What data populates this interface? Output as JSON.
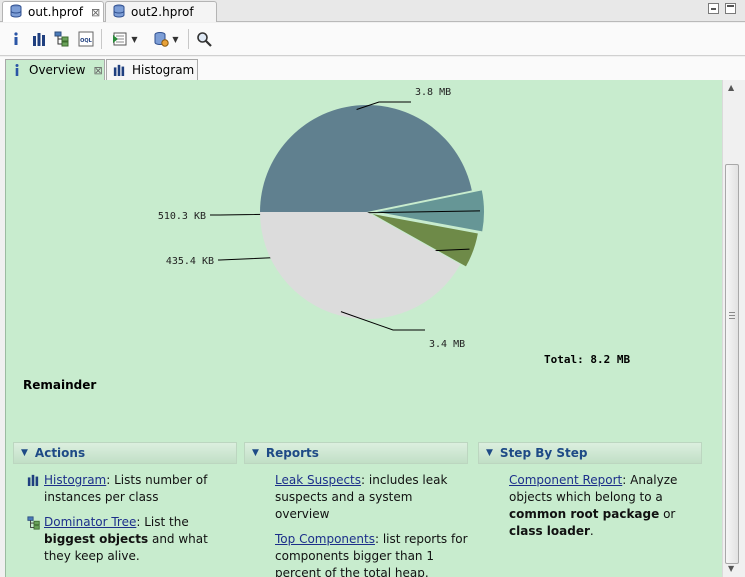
{
  "editor_tabs": [
    {
      "label": "out.hprof",
      "active": true
    },
    {
      "label": "out2.hprof",
      "active": false
    }
  ],
  "toolbar": {
    "icons": [
      "info-icon",
      "histogram-icon",
      "dominator-tree-icon",
      "oql-icon",
      "run-report-icon",
      "heap-dump-icon",
      "search-icon"
    ]
  },
  "inner_tabs": [
    {
      "label": "Overview",
      "active": true
    },
    {
      "label": "Histogram",
      "active": false
    }
  ],
  "chart_data": {
    "type": "pie",
    "slices": [
      {
        "label": "3.8 MB",
        "value": 3.8,
        "color": "#60808f"
      },
      {
        "label": "510.3 KB",
        "value": 0.498,
        "color": "#669696"
      },
      {
        "label": "435.4 KB",
        "value": 0.425,
        "color": "#6e8a48"
      },
      {
        "label": "3.4 MB",
        "value": 3.4,
        "color": "#dcdcdc"
      }
    ],
    "total_label": "Total: 8.2 MB"
  },
  "remainder_label": "Remainder",
  "sections": {
    "actions": {
      "title": "Actions",
      "histogram": {
        "link": "Histogram",
        "text": ": Lists number of instances per class"
      },
      "dominator": {
        "link": "Dominator Tree",
        "text_a": ": List the ",
        "bold": "biggest objects",
        "text_b": " and what they keep alive."
      }
    },
    "reports": {
      "title": "Reports",
      "leak": {
        "link": "Leak Suspects",
        "text": ": includes leak suspects and a system overview"
      },
      "top": {
        "link": "Top Components",
        "text": ": list reports for components bigger than 1 percent of the total heap."
      }
    },
    "step": {
      "title": "Step By Step",
      "component": {
        "link": "Component Report",
        "text_a": ": Analyze objects which belong to a ",
        "bold_a": "common root package",
        "text_b": " or ",
        "bold_b": "class loader",
        "text_c": "."
      }
    }
  },
  "colors": {
    "content_bg": "#c8ecce",
    "section_title": "#1e4a86",
    "link": "#1c2f8a"
  }
}
